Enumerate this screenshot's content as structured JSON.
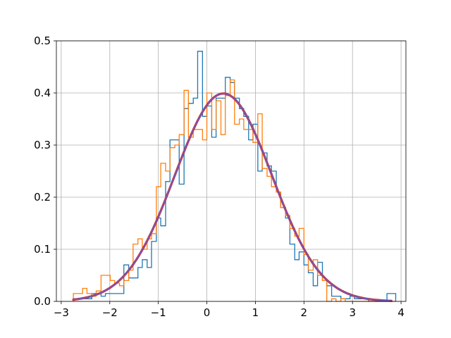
{
  "chart_data": {
    "type": "line",
    "title": "",
    "xlabel": "",
    "ylabel": "",
    "xlim": [
      -3.1,
      4.1
    ],
    "ylim": [
      0.0,
      0.5
    ],
    "x_ticks": [
      -3,
      -2,
      -1,
      0,
      1,
      2,
      3,
      4
    ],
    "x_tick_labels": [
      "−3",
      "−2",
      "−1",
      "0",
      "1",
      "2",
      "3",
      "4"
    ],
    "y_ticks": [
      0.0,
      0.1,
      0.2,
      0.3,
      0.4,
      0.5
    ],
    "y_tick_labels": [
      "0.0",
      "0.1",
      "0.2",
      "0.3",
      "0.4",
      "0.5"
    ],
    "grid": true,
    "legend": "none",
    "series": [
      {
        "kind": "step-histogram",
        "color": "#1f77b4",
        "x": [
          -2.75,
          -2.66,
          -2.56,
          -2.47,
          -2.37,
          -2.28,
          -2.18,
          -2.09,
          -1.99,
          -1.9,
          -1.8,
          -1.71,
          -1.61,
          -1.52,
          -1.42,
          -1.33,
          -1.23,
          -1.14,
          -1.04,
          -0.95,
          -0.85,
          -0.76,
          -0.66,
          -0.57,
          -0.47,
          -0.38,
          -0.28,
          -0.19,
          -0.09,
          0.0,
          0.1,
          0.19,
          0.29,
          0.38,
          0.48,
          0.57,
          0.67,
          0.76,
          0.86,
          0.95,
          1.05,
          1.14,
          1.24,
          1.33,
          1.43,
          1.52,
          1.62,
          1.71,
          1.81,
          1.9,
          2.0,
          2.09,
          2.19,
          2.28,
          2.38,
          2.47,
          2.57,
          2.66,
          2.76,
          2.85,
          2.95,
          3.04,
          3.14,
          3.23,
          3.33,
          3.42,
          3.52,
          3.61,
          3.71,
          3.8
        ],
        "y": [
          0.005,
          0.005,
          0.005,
          0.005,
          0.015,
          0.015,
          0.01,
          0.015,
          0.015,
          0.015,
          0.015,
          0.07,
          0.045,
          0.045,
          0.065,
          0.08,
          0.065,
          0.115,
          0.16,
          0.145,
          0.23,
          0.31,
          0.31,
          0.225,
          0.37,
          0.38,
          0.39,
          0.48,
          0.355,
          0.375,
          0.315,
          0.39,
          0.39,
          0.43,
          0.42,
          0.39,
          0.37,
          0.355,
          0.31,
          0.34,
          0.25,
          0.285,
          0.26,
          0.25,
          0.21,
          0.18,
          0.16,
          0.11,
          0.08,
          0.095,
          0.07,
          0.055,
          0.03,
          0.075,
          0.04,
          0.03,
          0.01,
          0.01,
          0.005,
          0.005,
          0.01,
          0.005,
          0.005,
          0.005,
          0.0,
          0.0,
          0.0,
          0.0,
          0.015,
          0.015
        ]
      },
      {
        "kind": "step-histogram",
        "color": "#ff7f0e",
        "x": [
          -2.75,
          -2.66,
          -2.56,
          -2.47,
          -2.37,
          -2.28,
          -2.18,
          -2.09,
          -1.99,
          -1.9,
          -1.8,
          -1.71,
          -1.61,
          -1.52,
          -1.42,
          -1.33,
          -1.23,
          -1.14,
          -1.04,
          -0.95,
          -0.85,
          -0.76,
          -0.66,
          -0.57,
          -0.47,
          -0.38,
          -0.28,
          -0.19,
          -0.09,
          0.0,
          0.1,
          0.19,
          0.29,
          0.38,
          0.48,
          0.57,
          0.67,
          0.76,
          0.86,
          0.95,
          1.05,
          1.14,
          1.24,
          1.33,
          1.43,
          1.52,
          1.62,
          1.71,
          1.81,
          1.9,
          2.0,
          2.09,
          2.19,
          2.28,
          2.38,
          2.47,
          2.57,
          2.66,
          2.76,
          2.85,
          2.95,
          3.04,
          3.14,
          3.23,
          3.33,
          3.42,
          3.52,
          3.61,
          3.71,
          3.8
        ],
        "y": [
          0.015,
          0.015,
          0.025,
          0.015,
          0.01,
          0.02,
          0.05,
          0.05,
          0.04,
          0.035,
          0.03,
          0.04,
          0.06,
          0.11,
          0.12,
          0.1,
          0.12,
          0.13,
          0.22,
          0.265,
          0.25,
          0.295,
          0.3,
          0.32,
          0.405,
          0.315,
          0.33,
          0.33,
          0.31,
          0.4,
          0.33,
          0.385,
          0.32,
          0.395,
          0.425,
          0.34,
          0.35,
          0.33,
          0.33,
          0.305,
          0.36,
          0.255,
          0.24,
          0.22,
          0.21,
          0.18,
          0.165,
          0.14,
          0.125,
          0.14,
          0.09,
          0.06,
          0.08,
          0.05,
          0.04,
          0.0,
          0.005,
          0.0,
          0.005,
          0.0,
          0.0,
          0.0,
          0.0,
          0.0,
          0.0,
          0.0,
          0.0,
          0.0,
          0.0,
          0.0
        ]
      },
      {
        "kind": "density-curve",
        "colors": [
          "#d62728",
          "#4a6cf0"
        ],
        "mean": 0.34,
        "sd": 1.0,
        "x_range": [
          -2.75,
          3.8
        ]
      }
    ]
  }
}
